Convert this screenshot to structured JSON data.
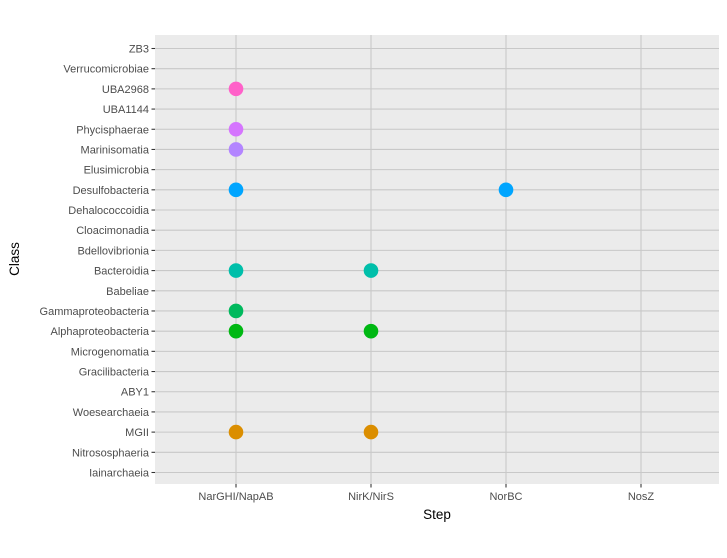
{
  "chart_data": {
    "type": "scatter",
    "xlabel": "Step",
    "ylabel": "Class",
    "x_categories": [
      "NarGHI/NapAB",
      "NirK/NirS",
      "NorBC",
      "NosZ"
    ],
    "y_categories": [
      "ZB3",
      "Verrucomicrobiae",
      "UBA2968",
      "UBA1144",
      "Phycisphaerae",
      "Marinisomatia",
      "Elusimicrobia",
      "Desulfobacteria",
      "Dehalococcoidia",
      "Cloacimonadia",
      "Bdellovibrionia",
      "Bacteroidia",
      "Babeliae",
      "Gammaproteobacteria",
      "Alphaproteobacteria",
      "Microgenomatia",
      "Gracilibacteria",
      "ABY1",
      "Woesearchaeia",
      "MGII",
      "Nitrososphaeria",
      "Iainarchaeia"
    ],
    "grid": true,
    "legend": "none",
    "points": [
      {
        "x": "NarGHI/NapAB",
        "y": "UBA2968",
        "color": "#FF61C9"
      },
      {
        "x": "NarGHI/NapAB",
        "y": "Phycisphaerae",
        "color": "#D575FE"
      },
      {
        "x": "NarGHI/NapAB",
        "y": "Marinisomatia",
        "color": "#B385FF"
      },
      {
        "x": "NarGHI/NapAB",
        "y": "Desulfobacteria",
        "color": "#00A5FF"
      },
      {
        "x": "NorBC",
        "y": "Desulfobacteria",
        "color": "#00A5FF"
      },
      {
        "x": "NarGHI/NapAB",
        "y": "Bacteroidia",
        "color": "#00BFAA"
      },
      {
        "x": "NirK/NirS",
        "y": "Bacteroidia",
        "color": "#00BFAA"
      },
      {
        "x": "NarGHI/NapAB",
        "y": "Gammaproteobacteria",
        "color": "#00B95D"
      },
      {
        "x": "NarGHI/NapAB",
        "y": "Alphaproteobacteria",
        "color": "#00B813"
      },
      {
        "x": "NirK/NirS",
        "y": "Alphaproteobacteria",
        "color": "#00B813"
      },
      {
        "x": "NarGHI/NapAB",
        "y": "MGII",
        "color": "#DB8E00"
      },
      {
        "x": "NirK/NirS",
        "y": "MGII",
        "color": "#DB8E00"
      }
    ],
    "colors": {
      "panel_background": "#EBEBEB",
      "grid_line": "#C8C8C8",
      "tick_text": "#4D4D4D",
      "tick_mark": "#333333"
    }
  }
}
